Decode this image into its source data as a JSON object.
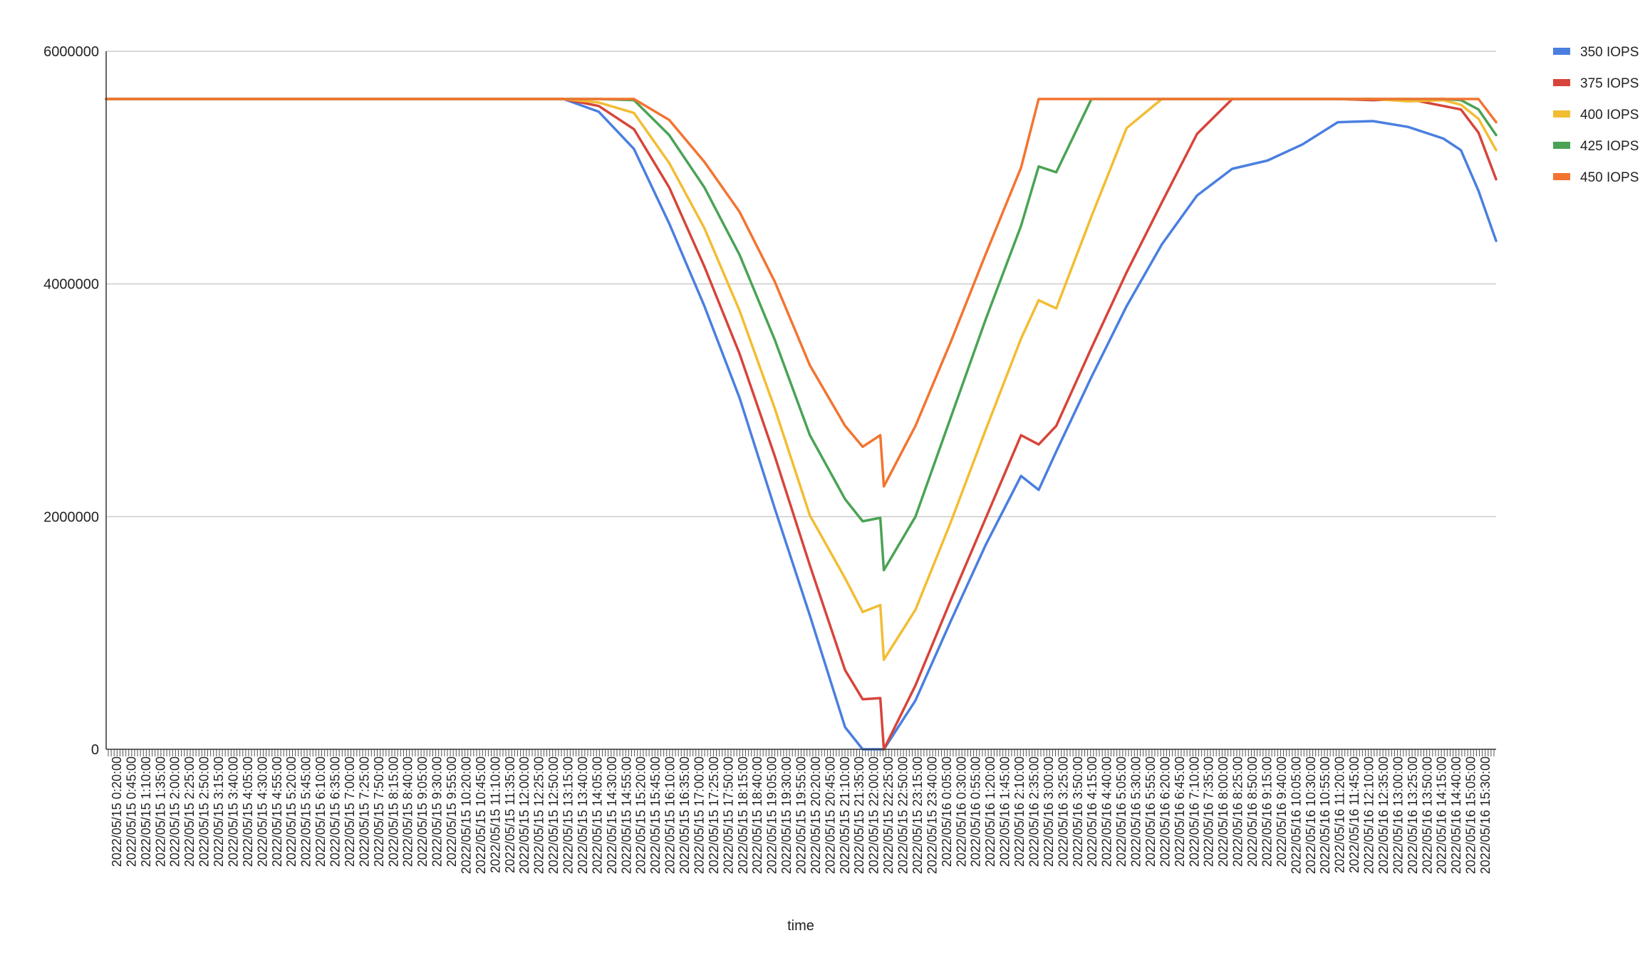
{
  "chart_data": {
    "type": "line",
    "xlabel": "time",
    "ylabel": "",
    "ylim": [
      0,
      6000000
    ],
    "yticks": [
      0,
      2000000,
      4000000,
      6000000
    ],
    "ytick_labels": [
      "0",
      "2000000",
      "4000000",
      "6000000"
    ],
    "grid": "horizontal",
    "legend_position": "top-right",
    "x_tick_labels": [
      "2022/05/15 0:20:00",
      "2022/05/15 0:45:00",
      "2022/05/15 1:10:00",
      "2022/05/15 1:35:00",
      "2022/05/15 2:00:00",
      "2022/05/15 2:25:00",
      "2022/05/15 2:50:00",
      "2022/05/15 3:15:00",
      "2022/05/15 3:40:00",
      "2022/05/15 4:05:00",
      "2022/05/15 4:30:00",
      "2022/05/15 4:55:00",
      "2022/05/15 5:20:00",
      "2022/05/15 5:45:00",
      "2022/05/15 6:10:00",
      "2022/05/15 6:35:00",
      "2022/05/15 7:00:00",
      "2022/05/15 7:25:00",
      "2022/05/15 7:50:00",
      "2022/05/15 8:15:00",
      "2022/05/15 8:40:00",
      "2022/05/15 9:05:00",
      "2022/05/15 9:30:00",
      "2022/05/15 9:55:00",
      "2022/05/15 10:20:00",
      "2022/05/15 10:45:00",
      "2022/05/15 11:10:00",
      "2022/05/15 11:35:00",
      "2022/05/15 12:00:00",
      "2022/05/15 12:25:00",
      "2022/05/15 12:50:00",
      "2022/05/15 13:15:00",
      "2022/05/15 13:40:00",
      "2022/05/15 14:05:00",
      "2022/05/15 14:30:00",
      "2022/05/15 14:55:00",
      "2022/05/15 15:20:00",
      "2022/05/15 15:45:00",
      "2022/05/15 16:10:00",
      "2022/05/15 16:35:00",
      "2022/05/15 17:00:00",
      "2022/05/15 17:25:00",
      "2022/05/15 17:50:00",
      "2022/05/15 18:15:00",
      "2022/05/15 18:40:00",
      "2022/05/15 19:05:00",
      "2022/05/15 19:30:00",
      "2022/05/15 19:55:00",
      "2022/05/15 20:20:00",
      "2022/05/15 20:45:00",
      "2022/05/15 21:10:00",
      "2022/05/15 21:35:00",
      "2022/05/15 22:00:00",
      "2022/05/15 22:25:00",
      "2022/05/15 22:50:00",
      "2022/05/15 23:15:00",
      "2022/05/15 23:40:00",
      "2022/05/16 0:05:00",
      "2022/05/16 0:30:00",
      "2022/05/16 0:55:00",
      "2022/05/16 1:20:00",
      "2022/05/16 1:45:00",
      "2022/05/16 2:10:00",
      "2022/05/16 2:35:00",
      "2022/05/16 3:00:00",
      "2022/05/16 3:25:00",
      "2022/05/16 3:50:00",
      "2022/05/16 4:15:00",
      "2022/05/16 4:40:00",
      "2022/05/16 5:05:00",
      "2022/05/16 5:30:00",
      "2022/05/16 5:55:00",
      "2022/05/16 6:20:00",
      "2022/05/16 6:45:00",
      "2022/05/16 7:10:00",
      "2022/05/16 7:35:00",
      "2022/05/16 8:00:00",
      "2022/05/16 8:25:00",
      "2022/05/16 8:50:00",
      "2022/05/16 9:15:00",
      "2022/05/16 9:40:00",
      "2022/05/16 10:05:00",
      "2022/05/16 10:30:00",
      "2022/05/16 10:55:00",
      "2022/05/16 11:20:00",
      "2022/05/16 11:45:00",
      "2022/05/16 12:10:00",
      "2022/05/16 12:35:00",
      "2022/05/16 13:00:00",
      "2022/05/16 13:25:00",
      "2022/05/16 13:50:00",
      "2022/05/16 14:15:00",
      "2022/05/16 14:40:00",
      "2022/05/16 15:05:00",
      "2022/05/16 15:30:00"
    ],
    "x_time_hours": [
      0,
      13,
      14,
      15,
      16,
      17,
      18,
      19,
      20,
      21,
      21.5,
      22,
      22.1,
      23,
      24,
      25,
      26,
      26.5,
      27,
      28,
      29,
      30,
      31,
      32,
      33,
      34,
      35,
      36,
      37,
      38,
      38.5,
      39,
      39.5
    ],
    "series": [
      {
        "name": "350 IOPS",
        "color": "#4a7fe0",
        "values": [
          5590000,
          5590000,
          5480000,
          5160000,
          4520000,
          3810000,
          3020000,
          2070000,
          1150000,
          190000,
          0,
          0,
          0,
          420000,
          1100000,
          1760000,
          2350000,
          2230000,
          2560000,
          3200000,
          3810000,
          4340000,
          4760000,
          4990000,
          5060000,
          5200000,
          5390000,
          5400000,
          5350000,
          5250000,
          5150000,
          4800000,
          4370000
        ]
      },
      {
        "name": "375 IOPS",
        "color": "#d7443a",
        "values": [
          5590000,
          5590000,
          5530000,
          5330000,
          4830000,
          4150000,
          3400000,
          2520000,
          1580000,
          680000,
          430000,
          440000,
          0,
          550000,
          1280000,
          1990000,
          2700000,
          2620000,
          2780000,
          3450000,
          4100000,
          4700000,
          5290000,
          5590000,
          5590000,
          5590000,
          5590000,
          5580000,
          5590000,
          5530000,
          5500000,
          5300000,
          4900000
        ]
      },
      {
        "name": "400 IOPS",
        "color": "#f2bd33",
        "values": [
          5590000,
          5590000,
          5560000,
          5470000,
          5040000,
          4480000,
          3770000,
          2930000,
          2010000,
          1470000,
          1180000,
          1240000,
          770000,
          1200000,
          1950000,
          2750000,
          3530000,
          3860000,
          3790000,
          4580000,
          5340000,
          5590000,
          5590000,
          5590000,
          5590000,
          5590000,
          5590000,
          5590000,
          5570000,
          5580000,
          5540000,
          5420000,
          5150000
        ]
      },
      {
        "name": "425 IOPS",
        "color": "#4aa355",
        "values": [
          5590000,
          5590000,
          5590000,
          5580000,
          5280000,
          4830000,
          4250000,
          3520000,
          2700000,
          2150000,
          1960000,
          1990000,
          1540000,
          2000000,
          2850000,
          3700000,
          4500000,
          5010000,
          4960000,
          5590000,
          5590000,
          5590000,
          5590000,
          5590000,
          5590000,
          5590000,
          5590000,
          5590000,
          5590000,
          5590000,
          5580000,
          5500000,
          5280000
        ]
      },
      {
        "name": "450 IOPS",
        "color": "#f37430",
        "values": [
          5590000,
          5590000,
          5590000,
          5590000,
          5410000,
          5050000,
          4620000,
          4020000,
          3300000,
          2780000,
          2600000,
          2700000,
          2260000,
          2780000,
          3500000,
          4260000,
          5000000,
          5590000,
          5590000,
          5590000,
          5590000,
          5590000,
          5590000,
          5590000,
          5590000,
          5590000,
          5590000,
          5590000,
          5590000,
          5590000,
          5590000,
          5590000,
          5390000
        ]
      }
    ]
  }
}
